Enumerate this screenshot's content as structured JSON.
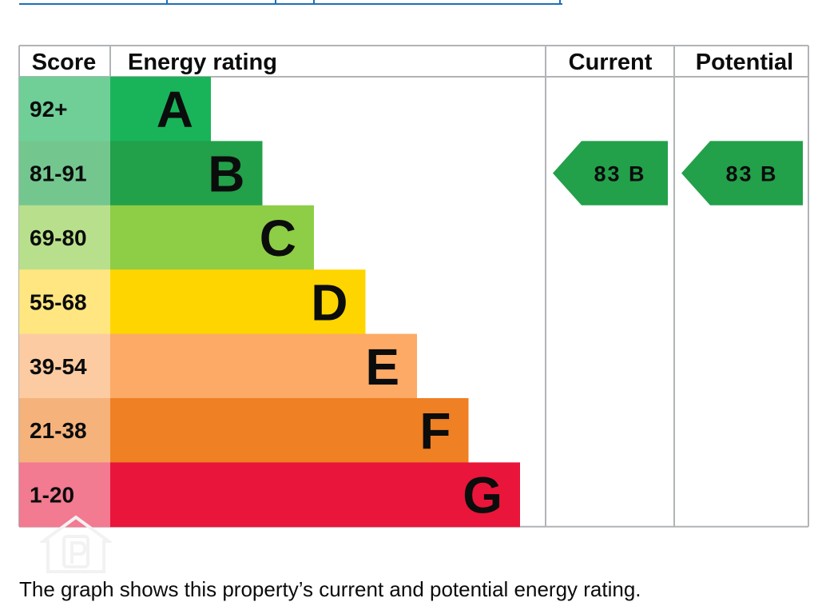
{
  "chart_data": {
    "type": "bar",
    "headers": {
      "score": "Score",
      "rating": "Energy rating",
      "current": "Current",
      "potential": "Potential"
    },
    "bands": [
      {
        "score": "92+",
        "letter": "A",
        "color": "#19b459",
        "score_bg": "#6fcf97"
      },
      {
        "score": "81-91",
        "letter": "B",
        "color": "#23a04a",
        "score_bg": "#74c68f"
      },
      {
        "score": "69-80",
        "letter": "C",
        "color": "#8dce46",
        "score_bg": "#b8e08c"
      },
      {
        "score": "55-68",
        "letter": "D",
        "color": "#ffd500",
        "score_bg": "#ffe680"
      },
      {
        "score": "39-54",
        "letter": "E",
        "color": "#fcaa65",
        "score_bg": "#fdcba2"
      },
      {
        "score": "21-38",
        "letter": "F",
        "color": "#ef8023",
        "score_bg": "#f5b27b"
      },
      {
        "score": "1-20",
        "letter": "G",
        "color": "#e9153b",
        "score_bg": "#f27a91"
      }
    ],
    "current": {
      "value": 83,
      "band": "B",
      "color": "#23a04a"
    },
    "potential": {
      "value": 83,
      "band": "B",
      "color": "#23a04a"
    }
  },
  "caption": "The graph shows this property’s current and potential energy rating.",
  "watermark_icon": "property-house-p-icon"
}
